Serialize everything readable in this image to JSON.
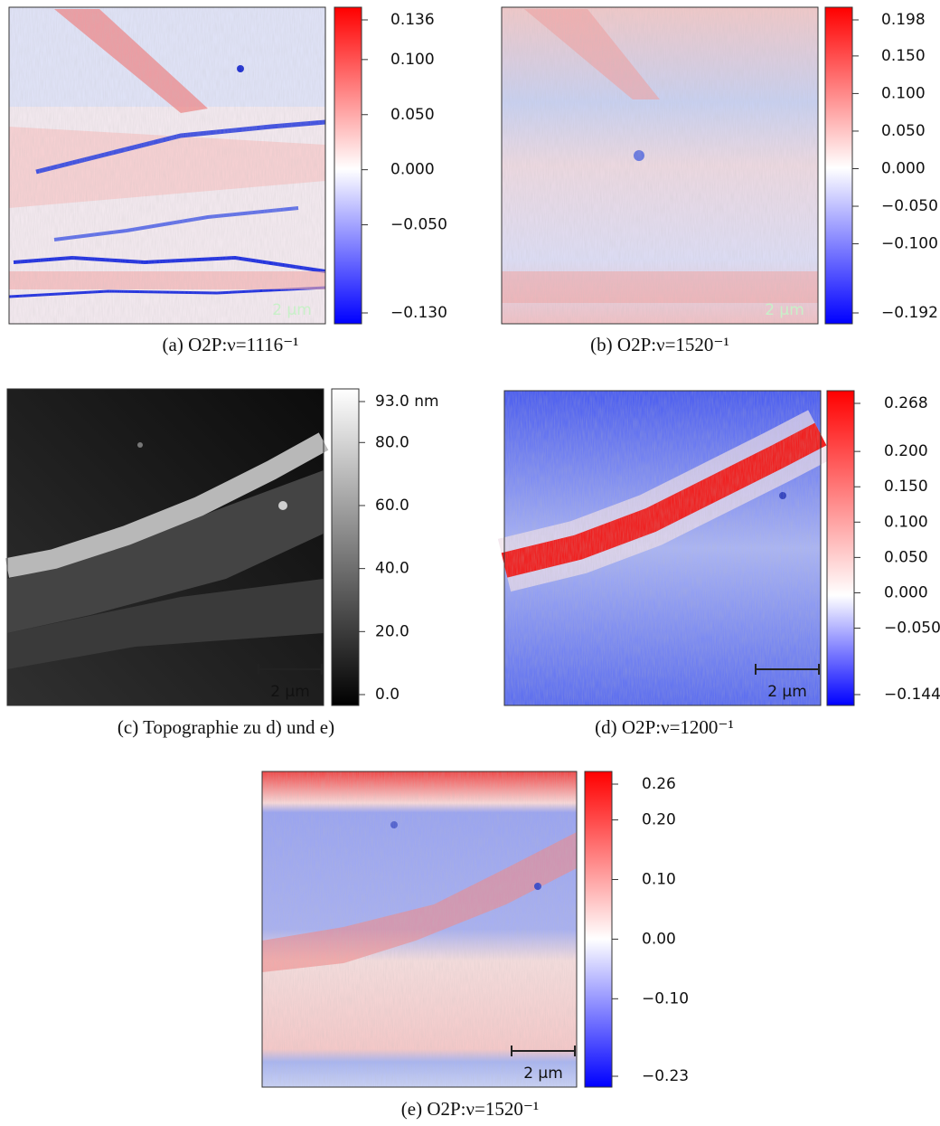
{
  "figure": {
    "panels": [
      {
        "caption": "(a) O2P:ν=1116⁻¹",
        "scale_bar": "2 µm",
        "ticks": [
          0.136,
          {
            "value": 0.1,
            "label": "0.100"
          },
          {
            "value": 0.05,
            "label": "0.050"
          },
          {
            "value": 0,
            "label": "0.000"
          },
          {
            "value": -0.05,
            "label": "−0.050"
          },
          {
            "value": -0.13,
            "label": "−0.130"
          }
        ]
      },
      {
        "caption": "(b) O2P:ν=1520⁻¹",
        "scale_bar": "2 µm",
        "ticks": [
          0.198,
          {
            "value": 0.15,
            "label": "0.150"
          },
          {
            "value": 0.1,
            "label": "0.100"
          },
          {
            "value": 0.05,
            "label": "0.050"
          },
          {
            "value": 0,
            "label": "0.000"
          },
          {
            "value": -0.05,
            "label": "−0.050"
          },
          {
            "value": -0.1,
            "label": "−0.100"
          },
          {
            "value": -0.192,
            "label": "−0.192"
          }
        ]
      },
      {
        "caption": "(c) Topographie zu d) und e)",
        "scale_bar": "2 µm",
        "ticks": [
          {
            "value": 93,
            "label": "93.0 nm"
          },
          {
            "value": 80,
            "label": "80.0"
          },
          {
            "value": 60,
            "label": "60.0"
          },
          {
            "value": 40,
            "label": "40.0"
          },
          {
            "value": 20,
            "label": "20.0"
          },
          {
            "value": 0,
            "label": "0.0"
          }
        ]
      },
      {
        "caption": "(d) O2P:ν=1200⁻¹",
        "scale_bar": "2 µm",
        "ticks": [
          0.268,
          {
            "value": 0.2,
            "label": "0.200"
          },
          {
            "value": 0.15,
            "label": "0.150"
          },
          {
            "value": 0.1,
            "label": "0.100"
          },
          {
            "value": 0.05,
            "label": "0.050"
          },
          {
            "value": 0,
            "label": "0.000"
          },
          {
            "value": -0.05,
            "label": "−0.050"
          },
          {
            "value": -0.144,
            "label": "−0.144"
          }
        ]
      },
      {
        "caption": "(e) O2P:ν=1520⁻¹",
        "scale_bar": "2 µm",
        "ticks": [
          0.26,
          {
            "value": 0.2,
            "label": "0.20"
          },
          {
            "value": 0.1,
            "label": "0.10"
          },
          {
            "value": 0,
            "label": "0.00"
          },
          {
            "value": -0.1,
            "label": "−0.10"
          },
          {
            "value": -0.23,
            "label": "−0.23"
          }
        ]
      }
    ]
  }
}
